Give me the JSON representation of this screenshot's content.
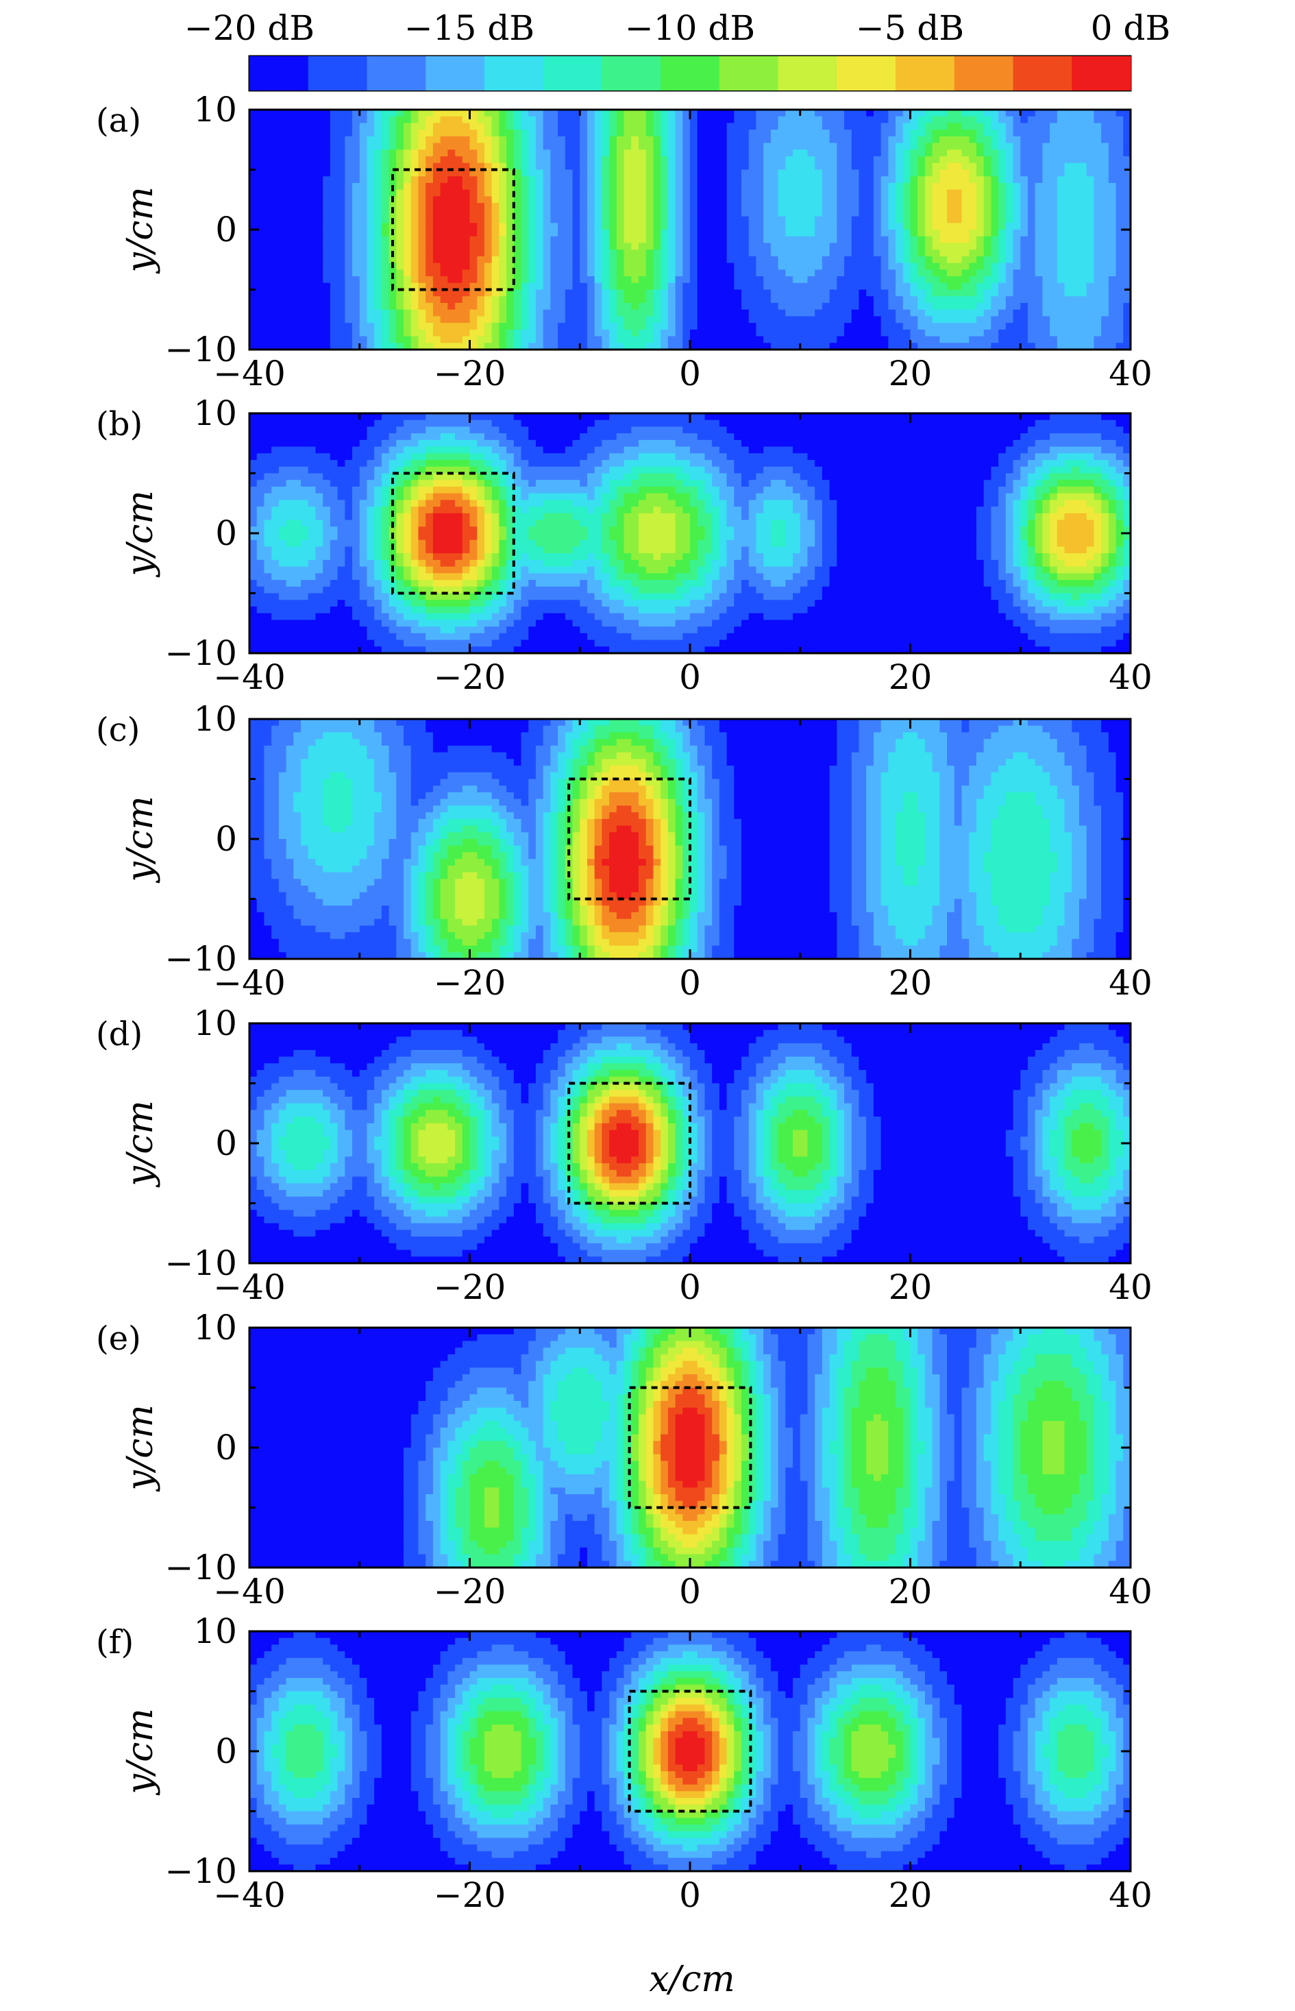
{
  "colorbar": {
    "labels": [
      "−20 dB",
      "−15 dB",
      "−10 dB",
      "−5 dB",
      "0 dB"
    ],
    "range_db": [
      -20,
      0
    ],
    "levels": 15,
    "colors": [
      "#0a0aff",
      "#1f50ff",
      "#3e7fff",
      "#4fb4ff",
      "#38e0f0",
      "#2cf0c8",
      "#3cf28a",
      "#49f04a",
      "#8ef03c",
      "#c8f23c",
      "#f0e83a",
      "#f5c02c",
      "#f58a24",
      "#f04a1c",
      "#ee1c1c"
    ]
  },
  "chart_data": [
    {
      "type": "heatmap",
      "panel": "(a)",
      "tag": "(a)",
      "xlim": [
        -40,
        40
      ],
      "ylim": [
        -10,
        10
      ],
      "xticks": [
        "−40",
        "−20",
        "0",
        "20",
        "40"
      ],
      "yticks": [
        "10",
        "0",
        "−10"
      ],
      "ylabel": "y/cm",
      "xlabel": "",
      "target_box_cm": {
        "x": [
          -27,
          -16
        ],
        "y": [
          -5,
          5
        ]
      },
      "hotspots": [
        {
          "x": -21.5,
          "y": 0,
          "db": 0,
          "sx": 5,
          "sy": 12
        },
        {
          "x": -5,
          "y": 3,
          "db": -7,
          "sx": 2.8,
          "sy": 12
        },
        {
          "x": 24,
          "y": 2,
          "db": -5,
          "sx": 4,
          "sy": 7
        },
        {
          "x": 10,
          "y": 3,
          "db": -14,
          "sx": 4,
          "sy": 8
        },
        {
          "x": -15,
          "y": 0,
          "db": -15,
          "sx": 4,
          "sy": 10
        },
        {
          "x": 35,
          "y": 0,
          "db": -14,
          "sx": 4,
          "sy": 12
        }
      ]
    },
    {
      "type": "heatmap",
      "panel": "(b)",
      "tag": "(b)",
      "xlim": [
        -40,
        40
      ],
      "ylim": [
        -10,
        10
      ],
      "xticks": [
        "−40",
        "−20",
        "0",
        "20",
        "40"
      ],
      "yticks": [
        "10",
        "0",
        "−10"
      ],
      "ylabel": "y/cm",
      "xlabel": "",
      "target_box_cm": {
        "x": [
          -27,
          -16
        ],
        "y": [
          -5,
          5
        ]
      },
      "hotspots": [
        {
          "x": -22,
          "y": 0,
          "db": 0,
          "sx": 4.5,
          "sy": 5
        },
        {
          "x": -3,
          "y": 0,
          "db": -7,
          "sx": 5,
          "sy": 5
        },
        {
          "x": 35,
          "y": 0,
          "db": -4,
          "sx": 4,
          "sy": 4.5
        },
        {
          "x": -36,
          "y": 0,
          "db": -13,
          "sx": 3.5,
          "sy": 4
        },
        {
          "x": 8,
          "y": 0,
          "db": -13,
          "sx": 3,
          "sy": 4
        },
        {
          "x": -12,
          "y": 0,
          "db": -11,
          "sx": 5,
          "sy": 3.5
        }
      ]
    },
    {
      "type": "heatmap",
      "panel": "(c)",
      "tag": "(c)",
      "xlim": [
        -40,
        40
      ],
      "ylim": [
        -10,
        10
      ],
      "xticks": [
        "−40",
        "−20",
        "0",
        "20",
        "40"
      ],
      "yticks": [
        "10",
        "0",
        "−10"
      ],
      "ylabel": "y/cm",
      "xlabel": "",
      "target_box_cm": {
        "x": [
          -11,
          0
        ],
        "y": [
          -5,
          5
        ]
      },
      "hotspots": [
        {
          "x": -6,
          "y": -2,
          "db": 0,
          "sx": 4.5,
          "sy": 9
        },
        {
          "x": -20,
          "y": -5,
          "db": -7,
          "sx": 4,
          "sy": 6
        },
        {
          "x": 30,
          "y": -2,
          "db": -12,
          "sx": 5,
          "sy": 10
        },
        {
          "x": -32,
          "y": 3,
          "db": -13,
          "sx": 5,
          "sy": 8
        },
        {
          "x": 20,
          "y": 0,
          "db": -13,
          "sx": 4,
          "sy": 12
        }
      ]
    },
    {
      "type": "heatmap",
      "panel": "(d)",
      "tag": "(d)",
      "xlim": [
        -40,
        40
      ],
      "ylim": [
        -10,
        10
      ],
      "xticks": [
        "−40",
        "−20",
        "0",
        "20",
        "40"
      ],
      "yticks": [
        "10",
        "0",
        "−10"
      ],
      "ylabel": "y/cm",
      "xlabel": "",
      "target_box_cm": {
        "x": [
          -11,
          0
        ],
        "y": [
          -5,
          5
        ]
      },
      "hotspots": [
        {
          "x": -6,
          "y": 0,
          "db": 0,
          "sx": 4,
          "sy": 5
        },
        {
          "x": -23,
          "y": 0,
          "db": -7,
          "sx": 4,
          "sy": 4.5
        },
        {
          "x": 10,
          "y": 0,
          "db": -9,
          "sx": 3.5,
          "sy": 5
        },
        {
          "x": 36,
          "y": 0,
          "db": -10,
          "sx": 3.5,
          "sy": 5
        },
        {
          "x": -35,
          "y": 0,
          "db": -12,
          "sx": 3.5,
          "sy": 4
        }
      ]
    },
    {
      "type": "heatmap",
      "panel": "(e)",
      "tag": "(e)",
      "xlim": [
        -40,
        40
      ],
      "ylim": [
        -10,
        10
      ],
      "xticks": [
        "−40",
        "−20",
        "0",
        "20",
        "40"
      ],
      "yticks": [
        "10",
        "0",
        "−10"
      ],
      "ylabel": "y/cm",
      "xlabel": "",
      "target_box_cm": {
        "x": [
          -5.5,
          5.5
        ],
        "y": [
          -5,
          5
        ]
      },
      "hotspots": [
        {
          "x": 0,
          "y": 0,
          "db": 0,
          "sx": 4.5,
          "sy": 9
        },
        {
          "x": 17,
          "y": 0,
          "db": -9,
          "sx": 4,
          "sy": 12
        },
        {
          "x": -18,
          "y": -5,
          "db": -9,
          "sx": 4,
          "sy": 7
        },
        {
          "x": 33,
          "y": 0,
          "db": -9,
          "sx": 5,
          "sy": 10
        },
        {
          "x": -10,
          "y": 3,
          "db": -12,
          "sx": 4,
          "sy": 6
        }
      ]
    },
    {
      "type": "heatmap",
      "panel": "(f)",
      "tag": "(f)",
      "xlim": [
        -40,
        40
      ],
      "ylim": [
        -10,
        10
      ],
      "xticks": [
        "−40",
        "−20",
        "0",
        "20",
        "40"
      ],
      "yticks": [
        "10",
        "0",
        "−10"
      ],
      "ylabel": "y/cm",
      "xlabel": "x/cm",
      "target_box_cm": {
        "x": [
          -5.5,
          5.5
        ],
        "y": [
          -5,
          5
        ]
      },
      "hotspots": [
        {
          "x": 0,
          "y": 0,
          "db": 0,
          "sx": 4,
          "sy": 5
        },
        {
          "x": -17,
          "y": 0,
          "db": -8,
          "sx": 4,
          "sy": 5
        },
        {
          "x": 16.5,
          "y": 0,
          "db": -8,
          "sx": 4,
          "sy": 5
        },
        {
          "x": -35,
          "y": 0,
          "db": -11,
          "sx": 3.5,
          "sy": 5
        },
        {
          "x": 35,
          "y": 0,
          "db": -11,
          "sx": 3.5,
          "sy": 5
        }
      ]
    }
  ]
}
